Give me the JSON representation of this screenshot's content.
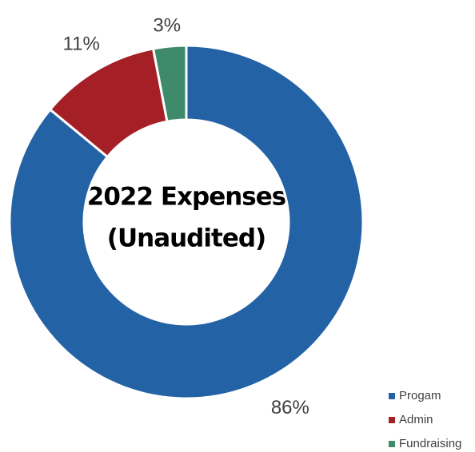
{
  "chart_data": {
    "type": "donut",
    "title": [
      "2022 Expenses",
      "(Unaudited)"
    ],
    "categories": [
      "Progam",
      "Admin",
      "Fundraising"
    ],
    "values": [
      86,
      11,
      3
    ],
    "value_labels": [
      "86%",
      "11%",
      "3%"
    ],
    "colors": [
      "#2462a6",
      "#a51f27",
      "#3f8a6b"
    ],
    "legend": "bottom-right"
  }
}
